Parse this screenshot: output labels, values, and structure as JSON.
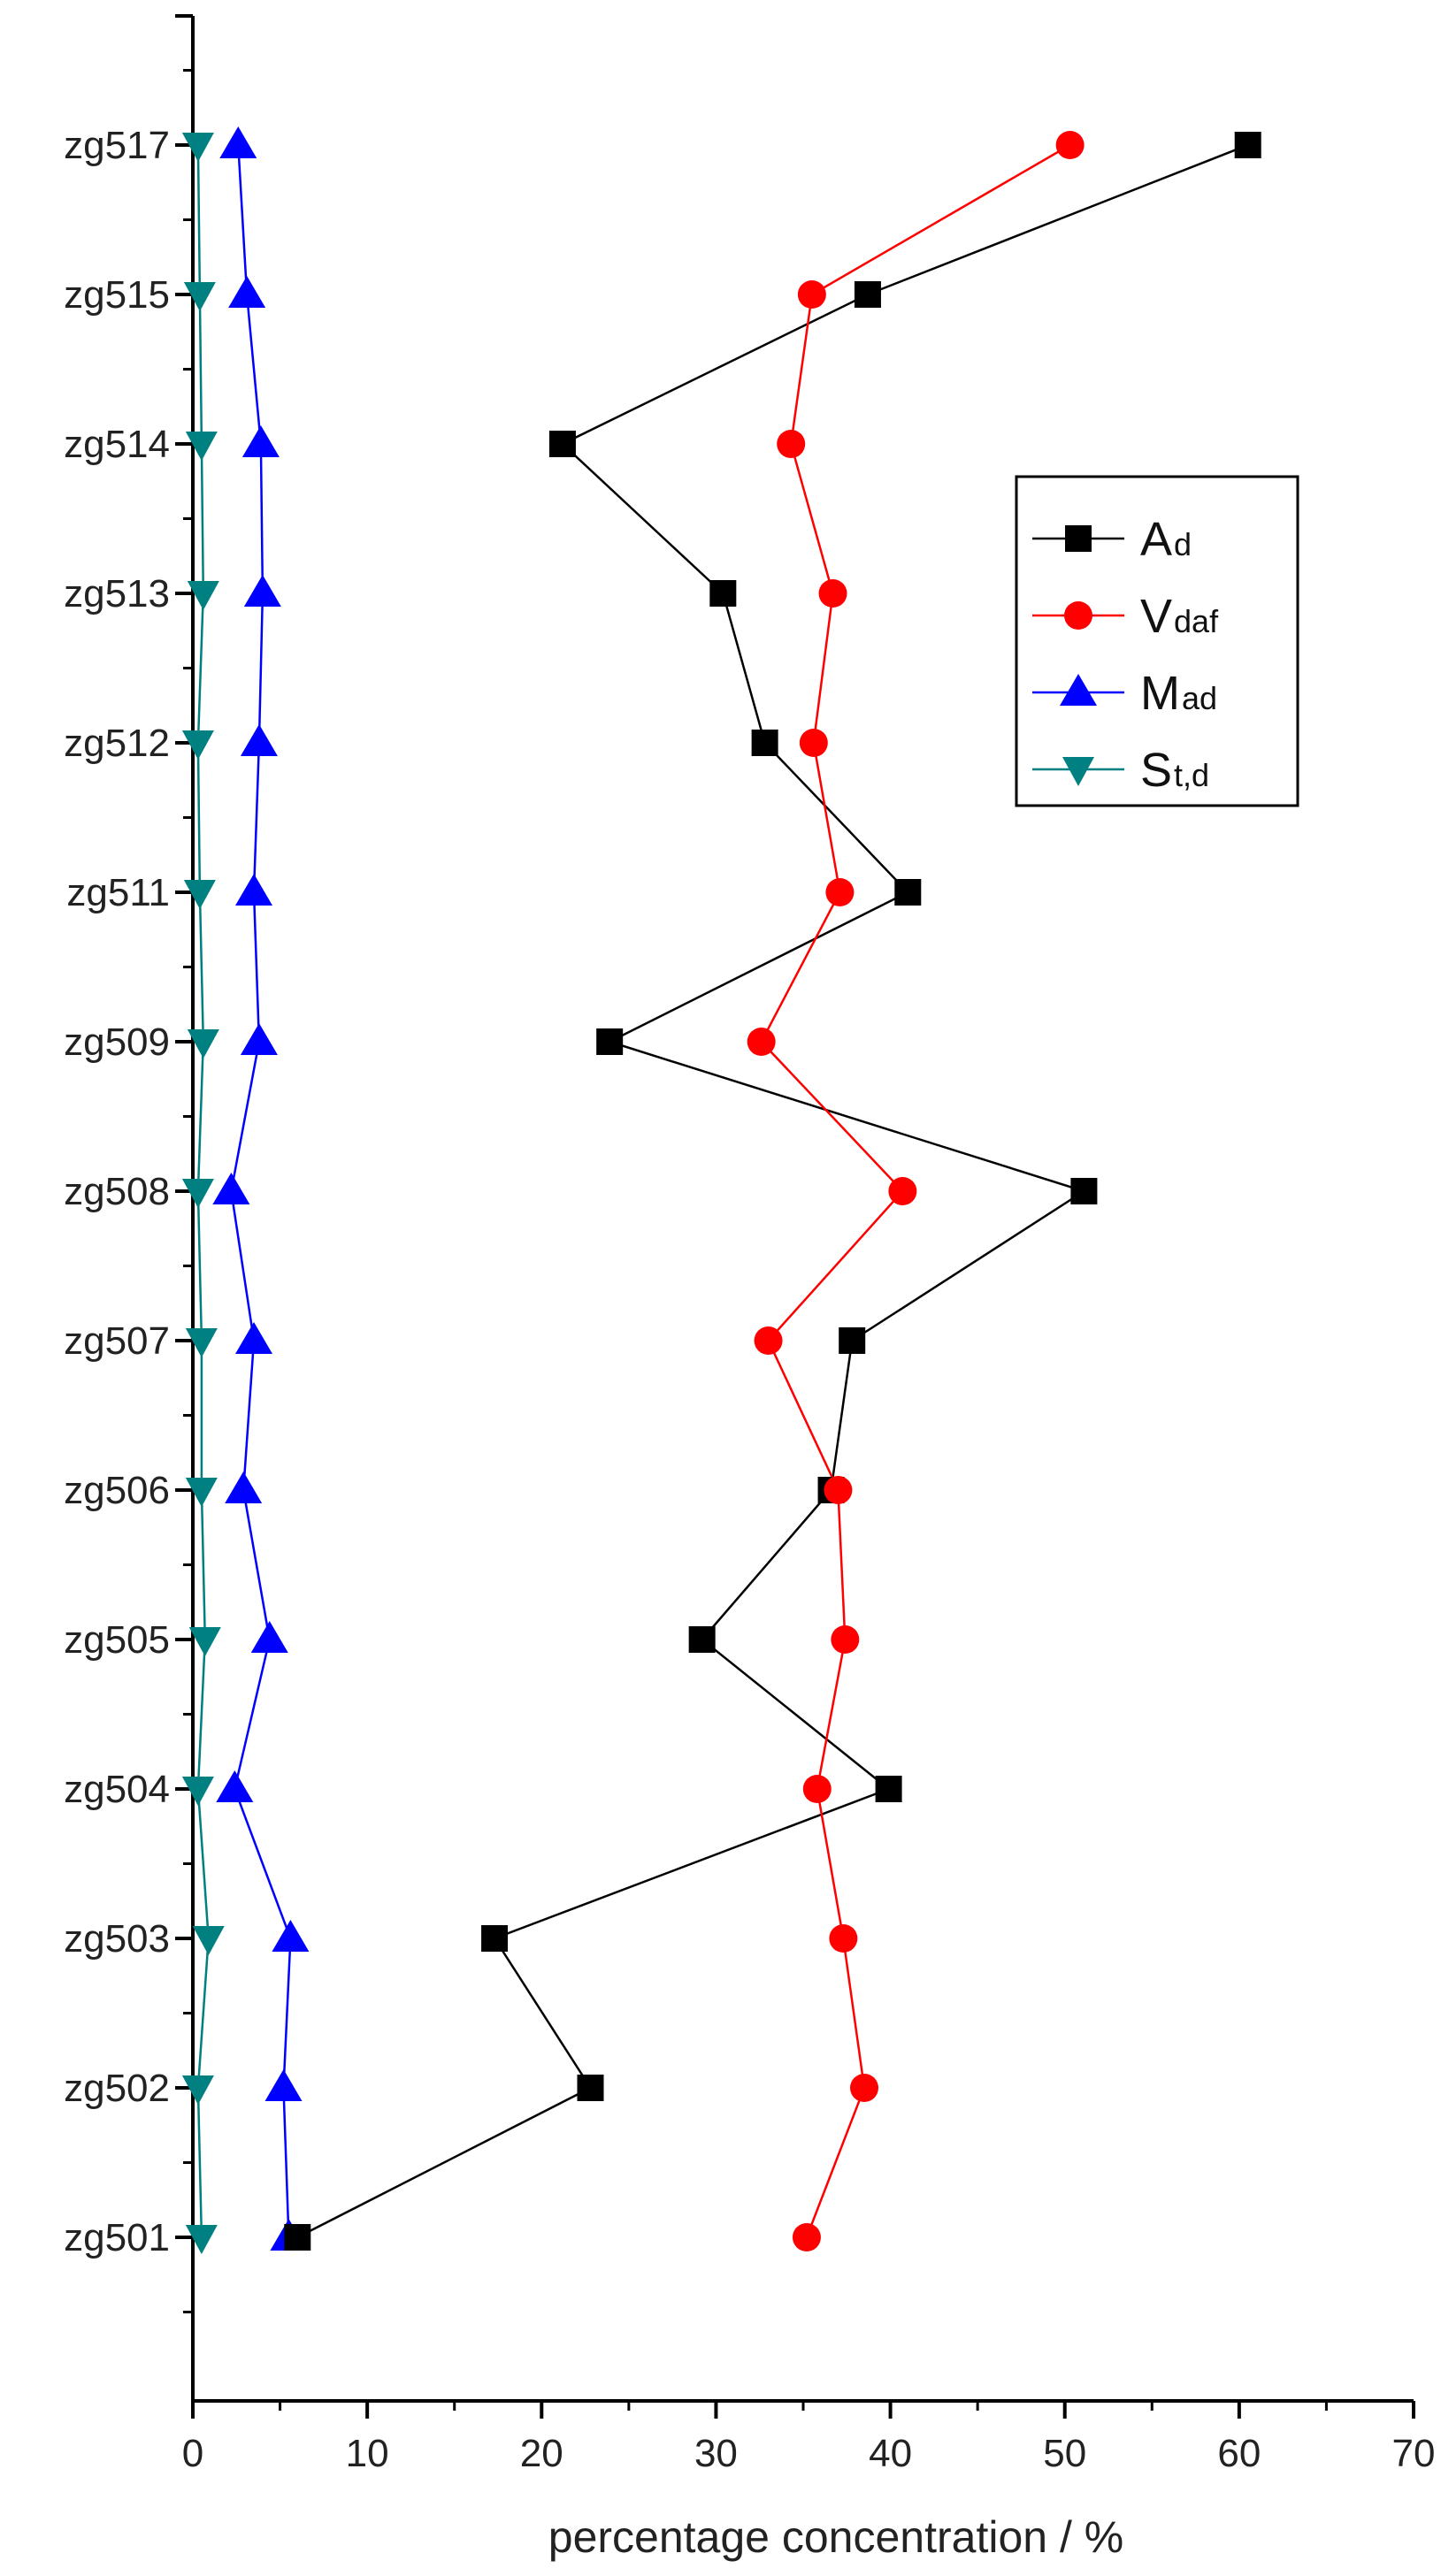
{
  "chart_data": {
    "type": "line",
    "orientation": "horizontal-profile",
    "title": "",
    "xlabel": "percentage concentration / %",
    "ylabel": "",
    "xlim": [
      0,
      70
    ],
    "x_ticks": [
      0,
      10,
      20,
      30,
      40,
      50,
      60,
      70
    ],
    "grid": false,
    "legend_position": "top-right",
    "categories": [
      "zg501",
      "zg502",
      "zg503",
      "zg504",
      "zg505",
      "zg506",
      "zg507",
      "zg508",
      "zg509",
      "zg511",
      "zg512",
      "zg513",
      "zg514",
      "zg515",
      "zg517"
    ],
    "series": [
      {
        "name": "A",
        "name_sub": "d",
        "color": "#000000",
        "marker": "square",
        "values": [
          6.0,
          22.8,
          17.3,
          39.9,
          29.2,
          36.6,
          37.8,
          51.1,
          23.9,
          41.0,
          32.8,
          30.4,
          21.2,
          38.7,
          60.5
        ]
      },
      {
        "name": "V",
        "name_sub": "daf",
        "color": "#ff0000",
        "marker": "circle",
        "values": [
          35.2,
          38.5,
          37.3,
          35.8,
          37.4,
          37.0,
          33.0,
          40.7,
          32.6,
          37.1,
          35.6,
          36.7,
          34.3,
          35.5,
          50.3
        ]
      },
      {
        "name": "M",
        "name_sub": "ad",
        "color": "#0000ff",
        "marker": "triangle-up",
        "values": [
          5.5,
          5.2,
          5.6,
          2.4,
          4.4,
          2.9,
          3.5,
          2.2,
          3.8,
          3.5,
          3.8,
          4.0,
          3.9,
          3.1,
          2.6
        ]
      },
      {
        "name": "S",
        "name_sub": "t,d",
        "color": "#008080",
        "marker": "triangle-down",
        "values": [
          0.5,
          0.3,
          0.9,
          0.3,
          0.7,
          0.5,
          0.5,
          0.3,
          0.6,
          0.4,
          0.3,
          0.6,
          0.5,
          0.4,
          0.3
        ]
      }
    ]
  }
}
